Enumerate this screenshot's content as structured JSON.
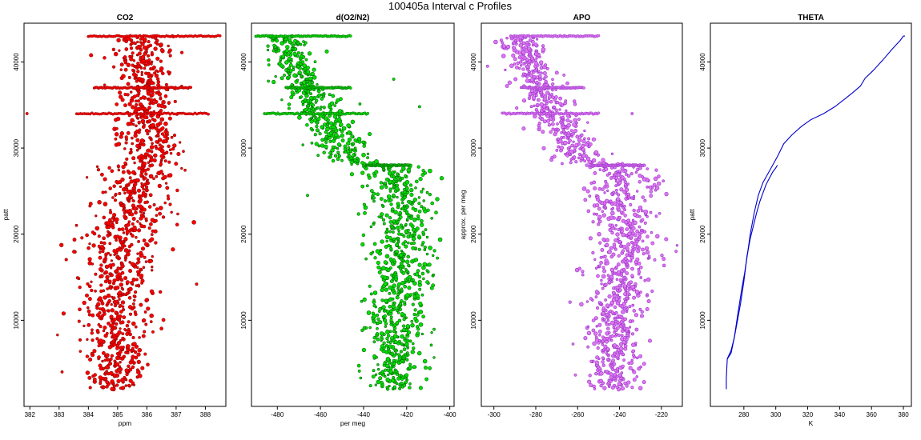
{
  "figure": {
    "title": "100405a   Interval c Profiles"
  },
  "chart_data": [
    {
      "id": "co2",
      "type": "scatter",
      "title": "CO2",
      "xlabel": "ppm",
      "ylabel": "patt",
      "xlim": [
        381.8,
        388.7
      ],
      "ylim": [
        0,
        44500
      ],
      "xticks": [
        382,
        383,
        384,
        385,
        386,
        387,
        388
      ],
      "yticks": [
        10000,
        20000,
        30000,
        40000
      ],
      "point_fill": "#ff0000",
      "point_edge": "#8b0000",
      "trend": [
        [
          2000,
          385.0,
          0.45
        ],
        [
          10000,
          384.9,
          0.6
        ],
        [
          20000,
          385.2,
          0.75
        ],
        [
          28000,
          385.9,
          0.6
        ],
        [
          34000,
          386.0,
          0.45
        ],
        [
          43000,
          385.9,
          0.5
        ]
      ],
      "bands": [
        {
          "y": 43000,
          "x": [
            384.0,
            388.5
          ]
        },
        {
          "y": 37000,
          "x": [
            384.2,
            387.5
          ]
        },
        {
          "y": 34000,
          "x": [
            383.6,
            388.1
          ]
        }
      ],
      "outliers": [
        [
          381.9,
          34000
        ],
        [
          383.1,
          4000
        ],
        [
          387.7,
          14200
        ]
      ]
    },
    {
      "id": "do2n2",
      "type": "scatter",
      "title": "d(O2/N2)",
      "xlabel": "per meg",
      "ylabel": "",
      "xlim": [
        -492,
        -398
      ],
      "ylim": [
        0,
        44500
      ],
      "xticks": [
        -480,
        -460,
        -440,
        -420,
        -400
      ],
      "yticks": [
        10000,
        20000,
        30000,
        40000
      ],
      "point_fill": "#00e000",
      "point_edge": "#006400",
      "trend": [
        [
          2000,
          -427,
          6
        ],
        [
          10000,
          -425,
          7
        ],
        [
          20000,
          -421,
          8
        ],
        [
          27500,
          -424,
          8
        ],
        [
          28500,
          -445,
          6
        ],
        [
          34000,
          -460,
          6
        ],
        [
          40000,
          -473,
          5
        ],
        [
          43000,
          -478,
          5
        ]
      ],
      "bands": [
        {
          "y": 43000,
          "x": [
            -490,
            -446
          ]
        },
        {
          "y": 37000,
          "x": [
            -476,
            -446
          ]
        },
        {
          "y": 34000,
          "x": [
            -486,
            -438
          ]
        },
        {
          "y": 28000,
          "x": [
            -439,
            -418
          ]
        }
      ],
      "outliers": [
        [
          -435,
          7500
        ],
        [
          -426,
          38000
        ],
        [
          -466,
          24500
        ],
        [
          -414,
          34800
        ]
      ]
    },
    {
      "id": "apo",
      "type": "scatter",
      "title": "APO",
      "xlabel": "",
      "ylabel": "approx. per meg",
      "xlim": [
        -306,
        -210
      ],
      "ylim": [
        0,
        44500
      ],
      "xticks": [
        -300,
        -280,
        -260,
        -240,
        -220
      ],
      "yticks": [
        10000,
        20000,
        30000,
        40000
      ],
      "point_fill": "#dd77ee",
      "point_edge": "#9932cc",
      "trend": [
        [
          2000,
          -242,
          6
        ],
        [
          10000,
          -242,
          7
        ],
        [
          20000,
          -238,
          8
        ],
        [
          27500,
          -238,
          8
        ],
        [
          28500,
          -258,
          6
        ],
        [
          34000,
          -272,
          6
        ],
        [
          40000,
          -284,
          5
        ],
        [
          43000,
          -288,
          5
        ]
      ],
      "bands": [
        {
          "y": 43000,
          "x": [
            -292,
            -250
          ]
        },
        {
          "y": 37000,
          "x": [
            -287,
            -257
          ]
        },
        {
          "y": 34000,
          "x": [
            -296,
            -250
          ]
        },
        {
          "y": 28000,
          "x": [
            -254,
            -228
          ]
        }
      ],
      "outliers": [
        [
          -303,
          39500
        ],
        [
          -234,
          34000
        ],
        [
          -213,
          18000
        ]
      ]
    },
    {
      "id": "theta",
      "type": "line",
      "title": "THETA",
      "xlabel": "K",
      "ylabel": "patt",
      "xlim": [
        259,
        385
      ],
      "ylim": [
        0,
        44500
      ],
      "xticks": [
        280,
        300,
        320,
        340,
        360,
        380
      ],
      "yticks": [
        10000,
        20000,
        30000,
        40000
      ],
      "color": "#0000cd",
      "series": [
        {
          "x": [
            269.0,
            269.0,
            269.3,
            269.6,
            272.0,
            274.0,
            276.0,
            279.0,
            280.5,
            282.5,
            284.0,
            286.5,
            289.0,
            292.0,
            295.0,
            298.0,
            301.0,
            305.0,
            310.0,
            316.0,
            322.0,
            330.0,
            337.0,
            344.0,
            348.0,
            353.0,
            356.0,
            361.0,
            367.0,
            373.0,
            378.0,
            380.0,
            381.0
          ],
          "y": [
            2000,
            3200,
            4400,
            5500,
            6200,
            8000,
            10500,
            14000,
            15500,
            18000,
            20000,
            22500,
            24500,
            26000,
            27000,
            28000,
            29000,
            30500,
            31500,
            32500,
            33300,
            34000,
            34800,
            35800,
            36400,
            37200,
            38100,
            39000,
            40200,
            41500,
            42500,
            43000,
            43000
          ]
        },
        {
          "x": [
            269.5,
            272.0,
            274.0,
            276.0,
            278.0,
            280.0,
            282.0,
            284.0,
            286.0,
            288.0,
            290.0,
            292.0,
            294.0,
            296.0,
            298.0,
            300.0,
            301.0
          ],
          "y": [
            5500,
            6500,
            8000,
            10000,
            12000,
            14500,
            17500,
            19500,
            21000,
            22500,
            23800,
            24800,
            25800,
            26500,
            27200,
            27700,
            28000
          ]
        }
      ]
    }
  ]
}
